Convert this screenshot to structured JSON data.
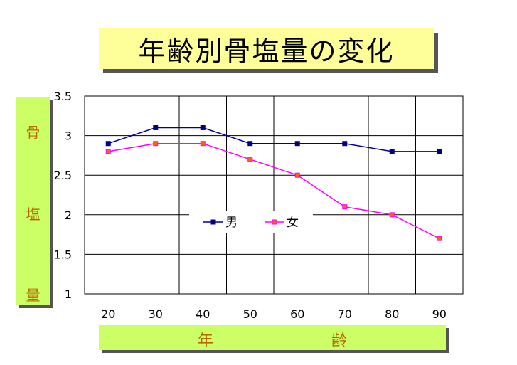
{
  "chart_data": {
    "type": "line",
    "title": "年齢別骨塩量の変化",
    "ylabel_chars": [
      "骨",
      "塩",
      "量"
    ],
    "xlabel_chars": [
      "年",
      "齢"
    ],
    "categories": [
      "20",
      "30",
      "40",
      "50",
      "60",
      "70",
      "80",
      "90"
    ],
    "y_ticks": [
      "3.5",
      "3",
      "2.5",
      "2",
      "1.5",
      "1"
    ],
    "ylim": [
      1,
      3.5
    ],
    "grid": true,
    "legend_position": "center",
    "series": [
      {
        "name": "男",
        "color": "#000099",
        "marker_color": "#000080",
        "values": [
          2.9,
          3.1,
          3.1,
          2.9,
          2.9,
          2.9,
          2.8,
          2.8
        ]
      },
      {
        "name": "女",
        "color": "#ff00ff",
        "marker_color": "#ff6600",
        "values": [
          2.8,
          2.9,
          2.9,
          2.7,
          2.5,
          2.1,
          2.0,
          1.7
        ]
      }
    ]
  }
}
